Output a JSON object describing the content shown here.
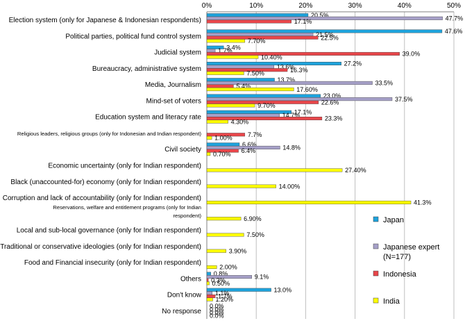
{
  "chart_data": {
    "type": "bar",
    "orientation": "horizontal",
    "xlim": [
      0,
      50
    ],
    "x_ticks": [
      "0%",
      "10%",
      "20%",
      "30%",
      "40%",
      "50%"
    ],
    "x_tick_values": [
      0,
      10,
      20,
      30,
      40,
      50
    ],
    "grid": true,
    "legend_position": "right",
    "categories": [
      "Election system (only for Japanese & Indonesian respondents)",
      "Political parties, political fund control system",
      "Judicial system",
      "Bureaucracy, administrative system",
      "Media, Journalism",
      "Mind-set of voters",
      "Education system and literacy rate",
      "Religious leaders, religious groups (only for Indonesian and Indian respondent)",
      "Civil society",
      "Economic uncertainty (only for Indian respondent)",
      "Black (unaccounted-for) economy (only for Indian respondent)",
      "Corruption and lack of accountability  (only for Indian respondent)",
      "Reservations, welfare and entitlement programs (only for Indian respondent)",
      "Local and sub-local governance (only for Indian respondent)",
      "Traditional or conservative ideologies (only for Indian respondent)",
      "Food and Financial insecurity (only for Indian respondent)",
      "Others",
      "Don't know",
      "No response"
    ],
    "series": [
      {
        "name": "Japan",
        "color": "#1ea3dc",
        "values": [
          20.5,
          47.6,
          3.4,
          27.2,
          13.7,
          23.0,
          17.1,
          null,
          6.6,
          null,
          null,
          null,
          null,
          null,
          null,
          null,
          0.8,
          13.0,
          0.0
        ],
        "labels": [
          "20.5%",
          "47.6%",
          "3.4%",
          "27.2%",
          "13.7%",
          "23.0%",
          "17.1%",
          "",
          "6.6%",
          "",
          "",
          "",
          "",
          "",
          "",
          "",
          "0.8%",
          "13.0%",
          "0.0%"
        ]
      },
      {
        "name": "Japanese expert (N=177)",
        "color": "#a6a0c8",
        "values": [
          47.7,
          21.5,
          1.7,
          13.6,
          33.5,
          37.5,
          14.7,
          null,
          14.8,
          null,
          null,
          null,
          null,
          null,
          null,
          null,
          9.1,
          1.1,
          0.0
        ],
        "labels": [
          "47.7%",
          "21.5%",
          "1.7%",
          "13.6%",
          "33.5%",
          "37.5%",
          "14.7%",
          "",
          "14.8%",
          "",
          "",
          "",
          "",
          "",
          "",
          "",
          "9.1%",
          "1.1%",
          "0.0%"
        ]
      },
      {
        "name": "Indonesia",
        "color": "#e8464a",
        "values": [
          17.1,
          22.5,
          39.0,
          16.3,
          5.4,
          22.6,
          23.3,
          7.7,
          6.4,
          null,
          null,
          null,
          null,
          null,
          null,
          null,
          0.3,
          1.7,
          0.0
        ],
        "labels": [
          "17.1%",
          "22.5%",
          "39.0%",
          "16.3%",
          "5.4%",
          "22.6%",
          "23.3%",
          "7.7%",
          "6.4%",
          "",
          "",
          "",
          "",
          "",
          "",
          "",
          "0.3%",
          "1.7%",
          "0.0%"
        ]
      },
      {
        "name": "India",
        "color": "#ffff00",
        "values": [
          null,
          7.7,
          10.4,
          7.5,
          17.6,
          9.7,
          4.3,
          1.0,
          0.7,
          27.4,
          14.0,
          41.3,
          6.9,
          7.5,
          3.9,
          2.0,
          0.5,
          1.2,
          0.0
        ],
        "labels": [
          "",
          "7.70%",
          "10.40%",
          "7.50%",
          "17.60%",
          "9.70%",
          "4.30%",
          "1.00%",
          "0.70%",
          "27.40%",
          "14.00%",
          "41.3%",
          "6.90%",
          "7.50%",
          "3.90%",
          "2.00%",
          "0.50%",
          "1.20%",
          "0.0%"
        ]
      }
    ],
    "legend_lines": [
      [
        "Japan"
      ],
      [
        "Japanese expert",
        "(N=177)"
      ],
      [
        "Indonesia"
      ],
      [
        "India"
      ]
    ]
  }
}
